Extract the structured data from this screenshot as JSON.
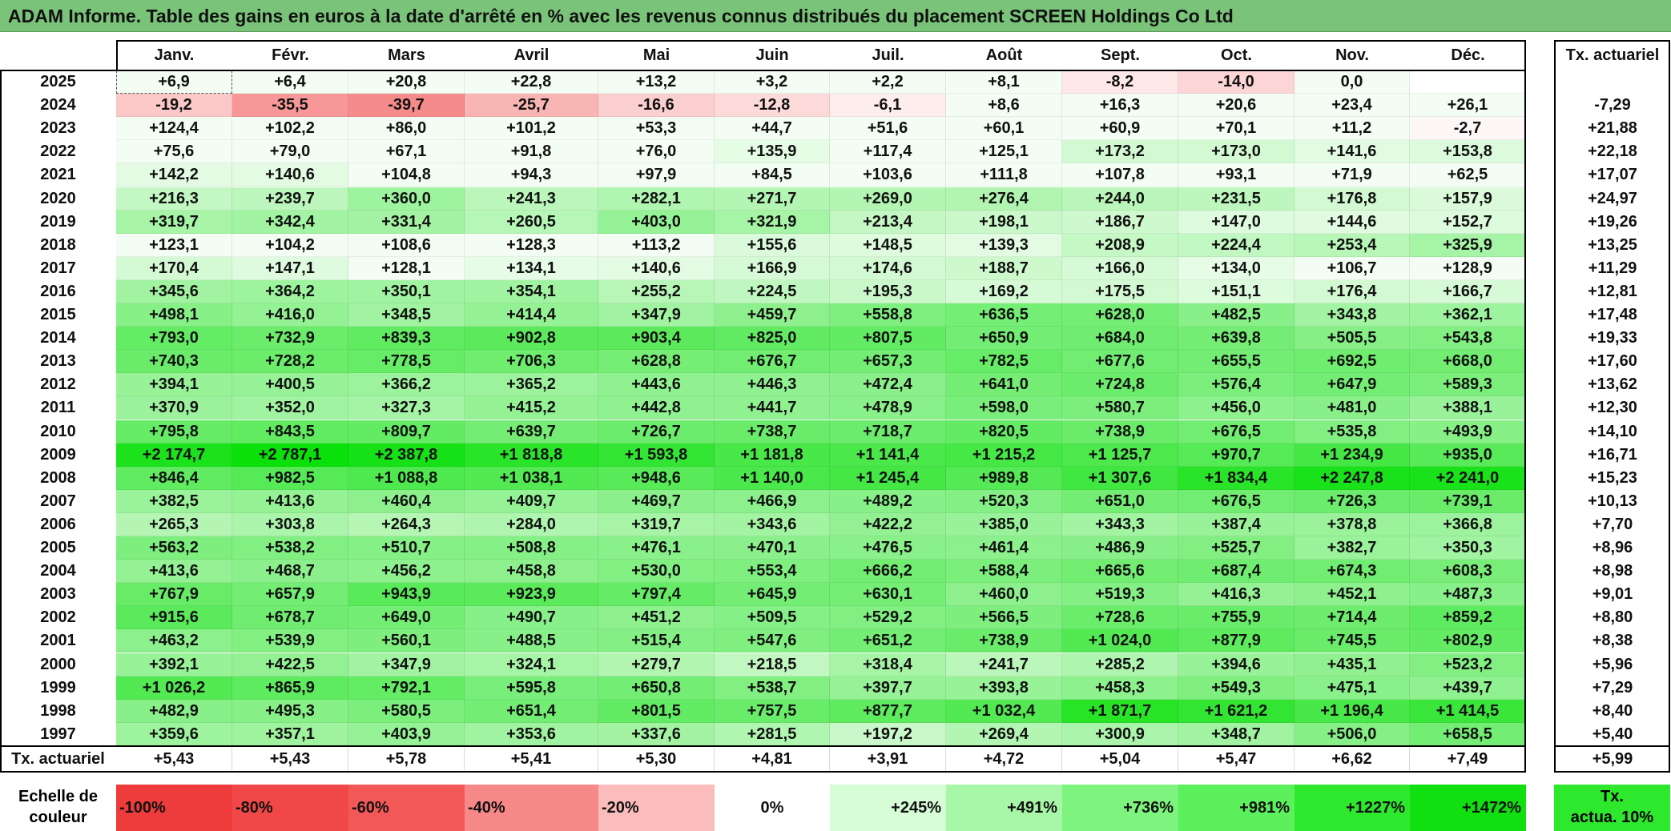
{
  "title": "ADAM Informe. Table des gains en euros à la date d'arrêté en % avec les revenus connus distribués du placement SCREEN Holdings Co Ltd",
  "months": [
    "Janv.",
    "Févr.",
    "Mars",
    "Avril",
    "Mai",
    "Juin",
    "Juil.",
    "Août",
    "Sept.",
    "Oct.",
    "Nov.",
    "Déc."
  ],
  "tx_header": "Tx. actuariel",
  "rows": [
    {
      "year": "2025",
      "values": [
        "+6,9",
        "+6,4",
        "+20,8",
        "+22,8",
        "+13,2",
        "+3,2",
        "+2,2",
        "+8,1",
        "-8,2",
        "-14,0",
        "0,0",
        ""
      ],
      "tx": ""
    },
    {
      "year": "2024",
      "values": [
        "-19,2",
        "-35,5",
        "-39,7",
        "-25,7",
        "-16,6",
        "-12,8",
        "-6,1",
        "+8,6",
        "+16,3",
        "+20,6",
        "+23,4",
        "+26,1"
      ],
      "tx": "-7,29"
    },
    {
      "year": "2023",
      "values": [
        "+124,4",
        "+102,2",
        "+86,0",
        "+101,2",
        "+53,3",
        "+44,7",
        "+51,6",
        "+60,1",
        "+60,9",
        "+70,1",
        "+11,2",
        "-2,7"
      ],
      "tx": "+21,88"
    },
    {
      "year": "2022",
      "values": [
        "+75,6",
        "+79,0",
        "+67,1",
        "+91,8",
        "+76,0",
        "+135,9",
        "+117,4",
        "+125,1",
        "+173,2",
        "+173,0",
        "+141,6",
        "+153,8"
      ],
      "tx": "+22,18"
    },
    {
      "year": "2021",
      "values": [
        "+142,2",
        "+140,6",
        "+104,8",
        "+94,3",
        "+97,9",
        "+84,5",
        "+103,6",
        "+111,8",
        "+107,8",
        "+93,1",
        "+71,9",
        "+62,5"
      ],
      "tx": "+17,07"
    },
    {
      "year": "2020",
      "values": [
        "+216,3",
        "+239,7",
        "+360,0",
        "+241,3",
        "+282,1",
        "+271,7",
        "+269,0",
        "+276,4",
        "+244,0",
        "+231,5",
        "+176,8",
        "+157,9"
      ],
      "tx": "+24,97"
    },
    {
      "year": "2019",
      "values": [
        "+319,7",
        "+342,4",
        "+331,4",
        "+260,5",
        "+403,0",
        "+321,9",
        "+213,4",
        "+198,1",
        "+186,7",
        "+147,0",
        "+144,6",
        "+152,7"
      ],
      "tx": "+19,26"
    },
    {
      "year": "2018",
      "values": [
        "+123,1",
        "+104,2",
        "+108,6",
        "+128,3",
        "+113,2",
        "+155,6",
        "+148,5",
        "+139,3",
        "+208,9",
        "+224,4",
        "+253,4",
        "+325,9"
      ],
      "tx": "+13,25"
    },
    {
      "year": "2017",
      "values": [
        "+170,4",
        "+147,1",
        "+128,1",
        "+134,1",
        "+140,6",
        "+166,9",
        "+174,6",
        "+188,7",
        "+166,0",
        "+134,0",
        "+106,7",
        "+128,9"
      ],
      "tx": "+11,29"
    },
    {
      "year": "2016",
      "values": [
        "+345,6",
        "+364,2",
        "+350,1",
        "+354,1",
        "+255,2",
        "+224,5",
        "+195,3",
        "+169,2",
        "+175,5",
        "+151,1",
        "+176,4",
        "+166,7"
      ],
      "tx": "+12,81"
    },
    {
      "year": "2015",
      "values": [
        "+498,1",
        "+416,0",
        "+348,5",
        "+414,4",
        "+347,9",
        "+459,7",
        "+558,8",
        "+636,5",
        "+628,0",
        "+482,5",
        "+343,8",
        "+362,1"
      ],
      "tx": "+17,48"
    },
    {
      "year": "2014",
      "values": [
        "+793,0",
        "+732,9",
        "+839,3",
        "+902,8",
        "+903,4",
        "+825,0",
        "+807,5",
        "+650,9",
        "+684,0",
        "+639,8",
        "+505,5",
        "+543,8"
      ],
      "tx": "+19,33"
    },
    {
      "year": "2013",
      "values": [
        "+740,3",
        "+728,2",
        "+778,5",
        "+706,3",
        "+628,8",
        "+676,7",
        "+657,3",
        "+782,5",
        "+677,6",
        "+655,5",
        "+692,5",
        "+668,0"
      ],
      "tx": "+17,60"
    },
    {
      "year": "2012",
      "values": [
        "+394,1",
        "+400,5",
        "+366,2",
        "+365,2",
        "+443,6",
        "+446,3",
        "+472,4",
        "+641,0",
        "+724,8",
        "+576,4",
        "+647,9",
        "+589,3"
      ],
      "tx": "+13,62"
    },
    {
      "year": "2011",
      "values": [
        "+370,9",
        "+352,0",
        "+327,3",
        "+415,2",
        "+442,8",
        "+441,7",
        "+478,9",
        "+598,0",
        "+580,7",
        "+456,0",
        "+481,0",
        "+388,1"
      ],
      "tx": "+12,30"
    },
    {
      "year": "2010",
      "values": [
        "+795,8",
        "+843,5",
        "+809,7",
        "+639,7",
        "+726,7",
        "+738,7",
        "+718,7",
        "+820,5",
        "+738,9",
        "+676,5",
        "+535,8",
        "+493,9"
      ],
      "tx": "+14,10"
    },
    {
      "year": "2009",
      "values": [
        "+2 174,7",
        "+2 787,1",
        "+2 387,8",
        "+1 818,8",
        "+1 593,8",
        "+1 181,8",
        "+1 141,4",
        "+1 215,2",
        "+1 125,7",
        "+970,7",
        "+1 234,9",
        "+935,0"
      ],
      "tx": "+16,71"
    },
    {
      "year": "2008",
      "values": [
        "+846,4",
        "+982,5",
        "+1 088,8",
        "+1 038,1",
        "+948,6",
        "+1 140,0",
        "+1 245,4",
        "+989,8",
        "+1 307,6",
        "+1 834,4",
        "+2 247,8",
        "+2 241,0"
      ],
      "tx": "+15,23"
    },
    {
      "year": "2007",
      "values": [
        "+382,5",
        "+413,6",
        "+460,4",
        "+409,7",
        "+469,7",
        "+466,9",
        "+489,2",
        "+520,3",
        "+651,0",
        "+676,5",
        "+726,3",
        "+739,1"
      ],
      "tx": "+10,13"
    },
    {
      "year": "2006",
      "values": [
        "+265,3",
        "+303,8",
        "+264,3",
        "+284,0",
        "+319,7",
        "+343,6",
        "+422,2",
        "+385,0",
        "+343,3",
        "+387,4",
        "+378,8",
        "+366,8"
      ],
      "tx": "+7,70"
    },
    {
      "year": "2005",
      "values": [
        "+563,2",
        "+538,2",
        "+510,7",
        "+508,8",
        "+476,1",
        "+470,1",
        "+476,5",
        "+461,4",
        "+486,9",
        "+525,7",
        "+382,7",
        "+350,3"
      ],
      "tx": "+8,96"
    },
    {
      "year": "2004",
      "values": [
        "+413,6",
        "+468,7",
        "+456,2",
        "+458,8",
        "+530,0",
        "+553,4",
        "+666,2",
        "+588,4",
        "+665,6",
        "+687,4",
        "+674,3",
        "+608,3"
      ],
      "tx": "+8,98"
    },
    {
      "year": "2003",
      "values": [
        "+767,9",
        "+657,9",
        "+943,9",
        "+923,9",
        "+797,4",
        "+645,9",
        "+630,1",
        "+460,0",
        "+519,3",
        "+416,3",
        "+452,1",
        "+487,3"
      ],
      "tx": "+9,01"
    },
    {
      "year": "2002",
      "values": [
        "+915,6",
        "+678,7",
        "+649,0",
        "+490,7",
        "+451,2",
        "+509,5",
        "+529,2",
        "+566,5",
        "+728,6",
        "+755,9",
        "+714,4",
        "+859,2"
      ],
      "tx": "+8,80"
    },
    {
      "year": "2001",
      "values": [
        "+463,2",
        "+539,9",
        "+560,1",
        "+488,5",
        "+515,4",
        "+547,6",
        "+651,2",
        "+738,9",
        "+1 024,0",
        "+877,9",
        "+745,5",
        "+802,9"
      ],
      "tx": "+8,38"
    },
    {
      "year": "2000",
      "values": [
        "+392,1",
        "+422,5",
        "+347,9",
        "+324,1",
        "+279,7",
        "+218,5",
        "+318,4",
        "+241,7",
        "+285,2",
        "+394,6",
        "+435,1",
        "+523,2"
      ],
      "tx": "+5,96"
    },
    {
      "year": "1999",
      "values": [
        "+1 026,2",
        "+865,9",
        "+792,1",
        "+595,8",
        "+650,8",
        "+538,7",
        "+397,7",
        "+393,8",
        "+458,3",
        "+549,3",
        "+475,1",
        "+439,7"
      ],
      "tx": "+7,29"
    },
    {
      "year": "1998",
      "values": [
        "+482,9",
        "+495,3",
        "+580,5",
        "+651,4",
        "+801,5",
        "+757,5",
        "+877,7",
        "+1 032,4",
        "+1 871,7",
        "+1 621,2",
        "+1 196,4",
        "+1 414,5"
      ],
      "tx": "+8,40"
    },
    {
      "year": "1997",
      "values": [
        "+359,6",
        "+357,1",
        "+403,9",
        "+353,6",
        "+337,6",
        "+281,5",
        "+197,2",
        "+269,4",
        "+300,9",
        "+348,7",
        "+506,0",
        "+658,5"
      ],
      "tx": "+5,40"
    }
  ],
  "footer": {
    "label": "Tx. actuariel",
    "values": [
      "+5,43",
      "+5,43",
      "+5,78",
      "+5,41",
      "+5,30",
      "+4,81",
      "+3,91",
      "+4,72",
      "+5,04",
      "+5,47",
      "+6,62",
      "+7,49"
    ],
    "tx": "+5,99"
  },
  "scale": {
    "label_line1": "Echelle de",
    "label_line2": "couleur",
    "items": [
      {
        "text": "-100%",
        "color": "#ee3b3b"
      },
      {
        "text": "-80%",
        "color": "#f04848"
      },
      {
        "text": "-60%",
        "color": "#f25858"
      },
      {
        "text": "-40%",
        "color": "#f78888"
      },
      {
        "text": "-20%",
        "color": "#fbbcbc"
      },
      {
        "text": "0%",
        "color": "#ffffff"
      },
      {
        "text": "+245%",
        "color": "#d6fdd6"
      },
      {
        "text": "+491%",
        "color": "#a8f7a8"
      },
      {
        "text": "+736%",
        "color": "#7ef47e"
      },
      {
        "text": "+981%",
        "color": "#5cf05c"
      },
      {
        "text": "+1227%",
        "color": "#2ee82e"
      },
      {
        "text": "+1472%",
        "color": "#10e010"
      }
    ],
    "tx_line1": "Tx.",
    "tx_line2": "actua. 10%",
    "tx_color": "#2ee82e"
  }
}
